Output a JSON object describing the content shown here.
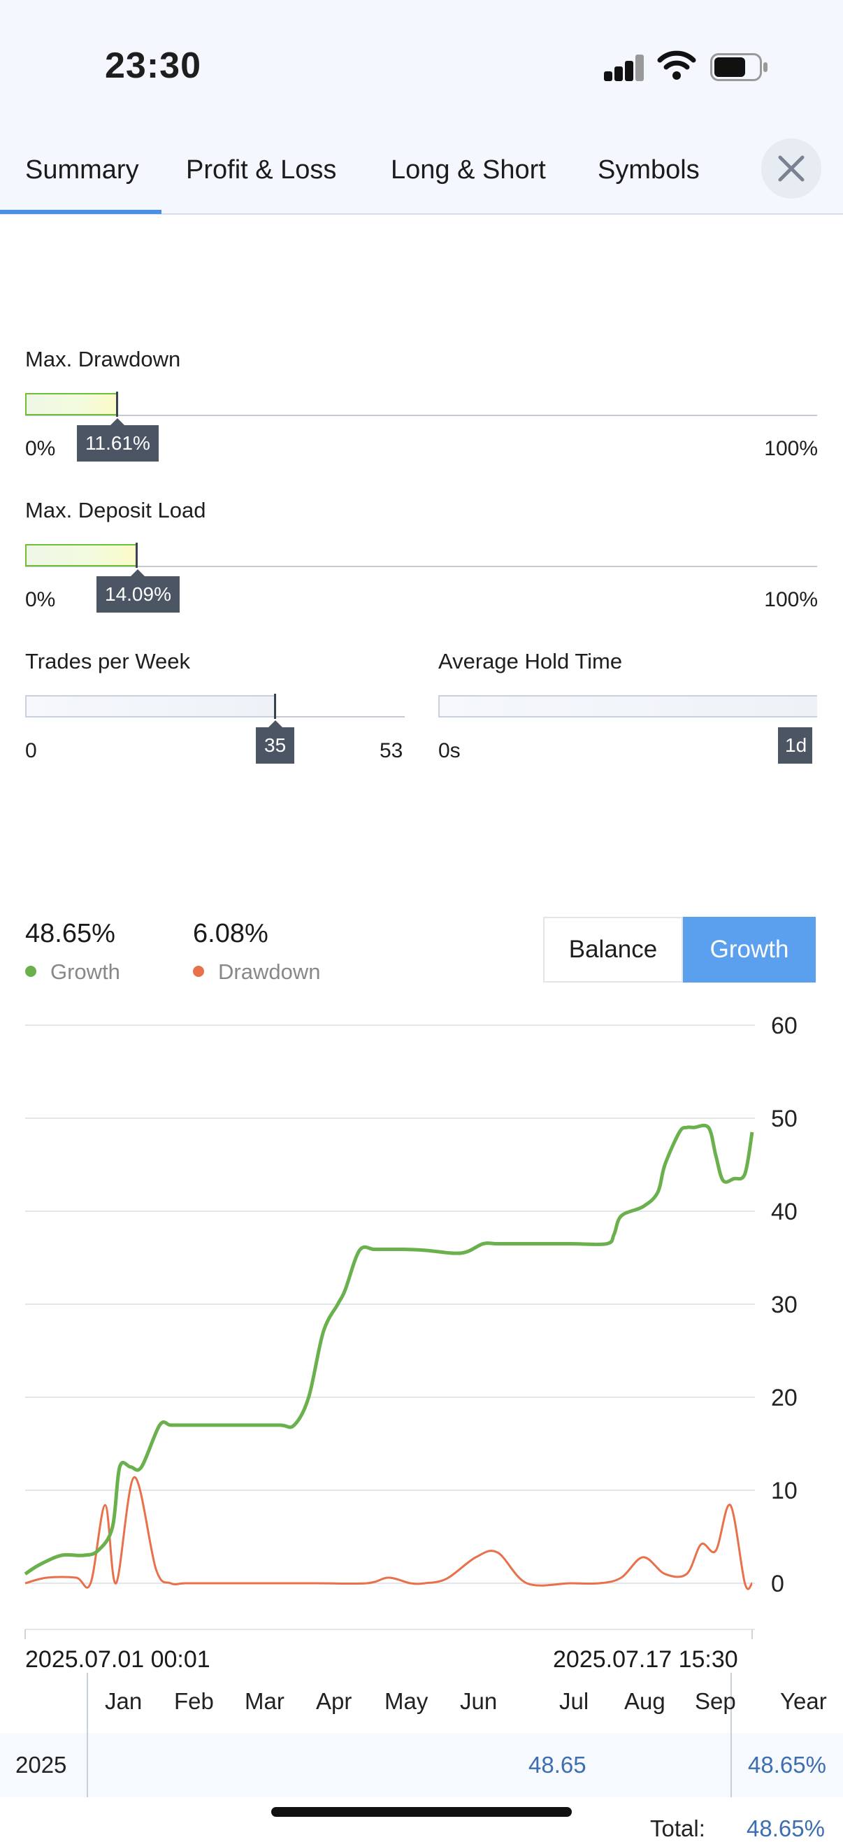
{
  "status_bar": {
    "time": "23:30"
  },
  "tabs": [
    {
      "label": "Summary",
      "active": true
    },
    {
      "label": "Profit & Loss"
    },
    {
      "label": "Long & Short"
    },
    {
      "label": "Symbols"
    }
  ],
  "gauges": {
    "max_drawdown": {
      "label": "Max. Drawdown",
      "value": "11.61%",
      "fraction": 0.1161,
      "min": "0%",
      "max": "100%"
    },
    "max_deposit_load": {
      "label": "Max. Deposit Load",
      "value": "14.09%",
      "fraction": 0.1409,
      "min": "0%",
      "max": "100%"
    },
    "trades_per_week": {
      "label": "Trades per Week",
      "value": "35",
      "fraction": 0.66,
      "min": "0",
      "max": "53"
    },
    "average_hold_time": {
      "label": "Average Hold Time",
      "value": "1d",
      "min": "0s"
    }
  },
  "stats": {
    "growth": {
      "value": "48.65%",
      "label": "Growth",
      "color": "#6ab04c"
    },
    "drawdown": {
      "value": "6.08%",
      "label": "Drawdown",
      "color": "#e8704a"
    }
  },
  "toggle": {
    "balance": "Balance",
    "growth": "Growth",
    "selected": "Growth"
  },
  "chart_data": {
    "type": "line",
    "ylim": [
      0,
      60
    ],
    "yticks": [
      "60",
      "50",
      "40",
      "30",
      "20",
      "10",
      "0"
    ],
    "grid": true,
    "start_label": "2025.07.01 00:01",
    "end_label": "2025.07.17 15:30",
    "series": [
      {
        "name": "Growth",
        "color": "#6ab04c",
        "x": [
          0,
          0.02,
          0.05,
          0.08,
          0.1,
          0.12,
          0.13,
          0.145,
          0.16,
          0.185,
          0.2,
          0.22,
          0.25,
          0.3,
          0.35,
          0.37,
          0.39,
          0.41,
          0.43,
          0.44,
          0.46,
          0.48,
          0.5,
          0.52,
          0.55,
          0.6,
          0.63,
          0.65,
          0.7,
          0.75,
          0.8,
          0.81,
          0.82,
          0.85,
          0.87,
          0.88,
          0.9,
          0.91,
          0.92,
          0.94,
          0.95,
          0.96,
          0.975,
          0.99,
          1.0
        ],
        "values": [
          1,
          2,
          3,
          3,
          3.5,
          6,
          12.5,
          12.5,
          12.5,
          17,
          17,
          17,
          17,
          17,
          17,
          17,
          20,
          27,
          30,
          31.5,
          35.8,
          35.9,
          35.9,
          35.9,
          35.8,
          35.5,
          36.5,
          36.5,
          36.5,
          36.5,
          36.5,
          37.5,
          39.5,
          40.5,
          42,
          45,
          48.5,
          49,
          49,
          49,
          46,
          43.3,
          43.5,
          44,
          48.5
        ]
      },
      {
        "name": "Drawdown",
        "color": "#e8704a",
        "x": [
          0,
          0.03,
          0.07,
          0.09,
          0.11,
          0.125,
          0.15,
          0.18,
          0.2,
          0.22,
          0.25,
          0.3,
          0.4,
          0.47,
          0.5,
          0.53,
          0.55,
          0.58,
          0.62,
          0.65,
          0.69,
          0.75,
          0.79,
          0.82,
          0.85,
          0.88,
          0.91,
          0.93,
          0.95,
          0.97,
          0.99,
          1.0
        ],
        "values": [
          0,
          0.6,
          0.6,
          0,
          8.4,
          0,
          11.4,
          1.5,
          0,
          0,
          0,
          0,
          0,
          0,
          0.6,
          0,
          0,
          0.5,
          2.8,
          3.3,
          0,
          0,
          0,
          0.6,
          2.8,
          1,
          1,
          4.2,
          3.5,
          8.4,
          0,
          0
        ]
      }
    ]
  },
  "year_table": {
    "months": [
      "Jan",
      "Feb",
      "Mar",
      "Apr",
      "May",
      "Jun",
      "Jul",
      "Aug",
      "Sep"
    ],
    "year_header": "Year",
    "row": {
      "year": "2025",
      "jul_value": "48.65",
      "year_value": "48.65%"
    },
    "total_label": "Total:",
    "total_value": "48.65%"
  }
}
